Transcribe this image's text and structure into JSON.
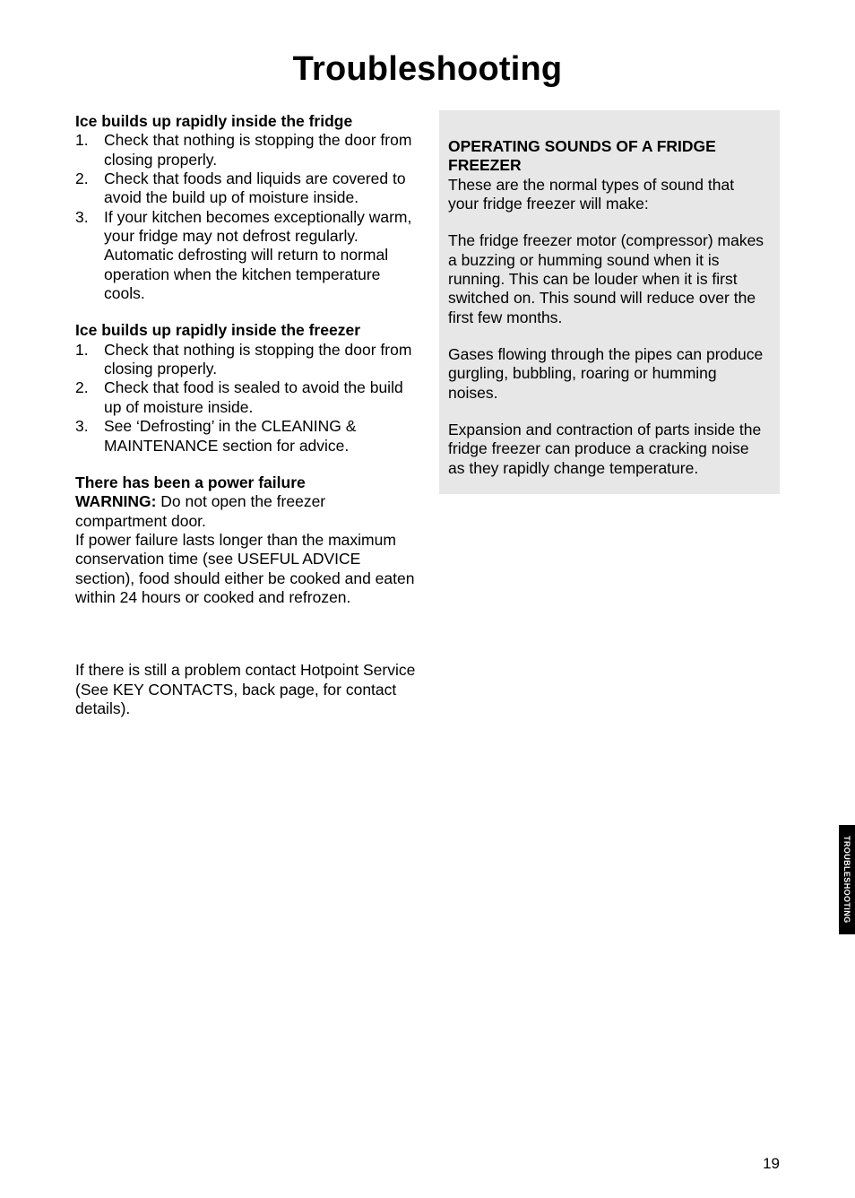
{
  "title": "Troubleshooting",
  "left": {
    "s1": {
      "head": "Ice builds up rapidly inside the fridge",
      "items": [
        "Check that nothing is stopping the door from closing properly.",
        "Check that foods and liquids are covered to avoid the build up of moisture inside.",
        "If your kitchen becomes exceptionally warm, your fridge may not defrost regularly.  Automatic defrosting will return to normal operation when the kitchen temperature cools."
      ]
    },
    "s2": {
      "head": "Ice builds up rapidly inside the freezer",
      "items": [
        "Check that nothing is stopping the door from closing properly.",
        "Check that food is sealed to avoid the build up of moisture inside.",
        "See ‘Defrosting’ in the CLEANING & MAINTENANCE section for advice."
      ]
    },
    "s3": {
      "head": "There has been a power failure",
      "warning_label": "WARNING:",
      "warning_text": " Do not open the freezer compartment door.",
      "body": "If power failure lasts longer than the maximum conservation time (see USEFUL ADVICE section), food should either be cooked and eaten within 24 hours or cooked and refrozen."
    },
    "s4": {
      "body": "If there is still a problem contact Hotpoint Service (See KEY CONTACTS, back page, for contact details)."
    }
  },
  "right": {
    "head": "OPERATING SOUNDS OF A FRIDGE FREEZER",
    "p1": "These are the normal types of sound that your fridge freezer will make:",
    "p2": "The fridge freezer motor (compressor) makes a buzzing or humming sound when it is running.  This can be louder when it is first switched on.  This sound will reduce over the first few months.",
    "p3": "Gases flowing through the pipes can produce gurgling, bubbling, roaring or humming noises.",
    "p4": "Expansion and contraction of parts inside the fridge freezer can produce a cracking noise as they rapidly change temperature."
  },
  "side_tab": "TROUBLESHOOTING",
  "page_number": "19"
}
